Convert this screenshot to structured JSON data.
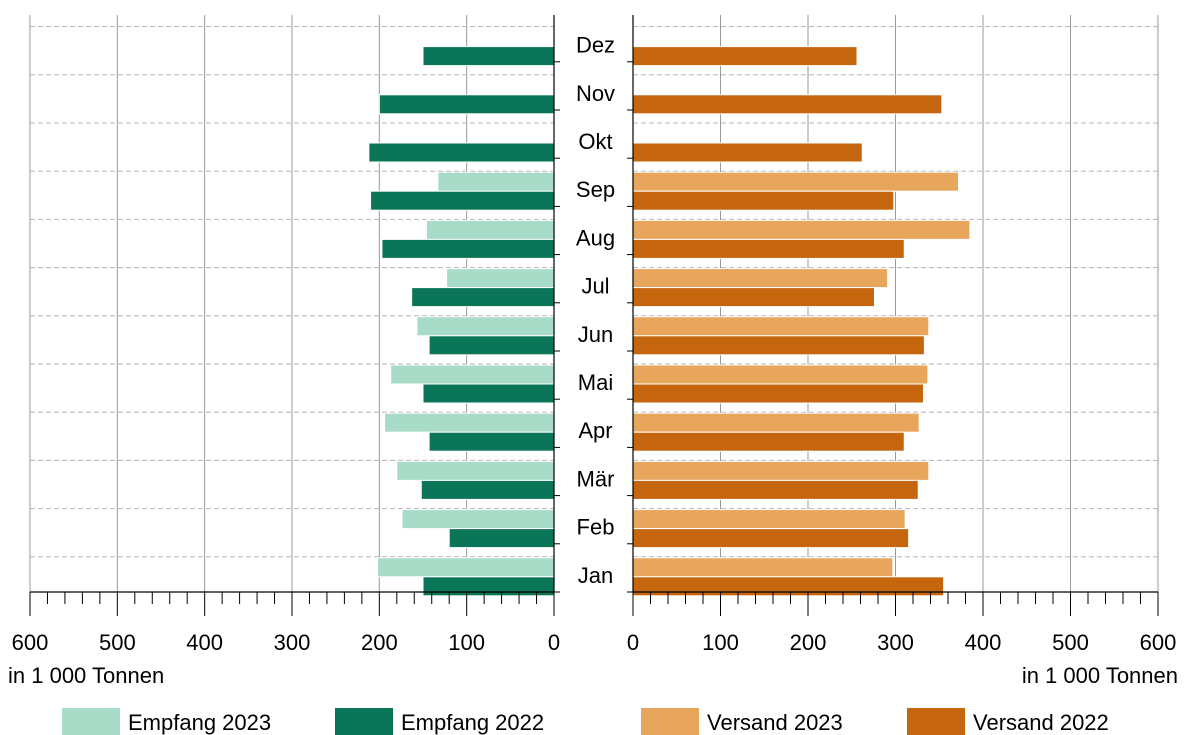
{
  "chart_data": {
    "type": "bar",
    "orientation": "horizontal-butterfly",
    "categories": [
      "Jan",
      "Feb",
      "Mär",
      "Apr",
      "Mai",
      "Jun",
      "Jul",
      "Aug",
      "Sep",
      "Okt",
      "Nov",
      "Dez"
    ],
    "left_panel": {
      "xlim": [
        600,
        0
      ],
      "ticks": [
        600,
        500,
        400,
        300,
        200,
        100,
        0
      ],
      "unit_label": "in 1 000 Tonnen",
      "series": [
        {
          "name": "Empfang 2023",
          "color": "#a8dcc8",
          "values": [
            202,
            174,
            180,
            194,
            187,
            157,
            123,
            146,
            133,
            null,
            null,
            null
          ]
        },
        {
          "name": "Empfang 2022",
          "color": "#0a7557",
          "values": [
            150,
            120,
            152,
            143,
            150,
            143,
            163,
            197,
            210,
            212,
            200,
            150
          ]
        }
      ]
    },
    "right_panel": {
      "xlim": [
        0,
        600
      ],
      "ticks": [
        0,
        100,
        200,
        300,
        400,
        500,
        600
      ],
      "unit_label": "in 1 000 Tonnen",
      "series": [
        {
          "name": "Versand 2023",
          "color": "#e8a55c",
          "values": [
            297,
            311,
            338,
            327,
            337,
            338,
            291,
            385,
            372,
            null,
            null,
            null
          ]
        },
        {
          "name": "Versand 2022",
          "color": "#c5660f",
          "values": [
            355,
            315,
            326,
            310,
            332,
            333,
            276,
            310,
            298,
            262,
            353,
            256
          ]
        }
      ]
    },
    "legend": {
      "placement": "bottom",
      "items": [
        {
          "label": "Empfang 2023",
          "color": "#a8dcc8"
        },
        {
          "label": "Empfang 2022",
          "color": "#0a7557"
        },
        {
          "label": "Versand 2023",
          "color": "#e8a55c"
        },
        {
          "label": "Versand 2022",
          "color": "#c5660f"
        }
      ]
    },
    "grid": true
  }
}
